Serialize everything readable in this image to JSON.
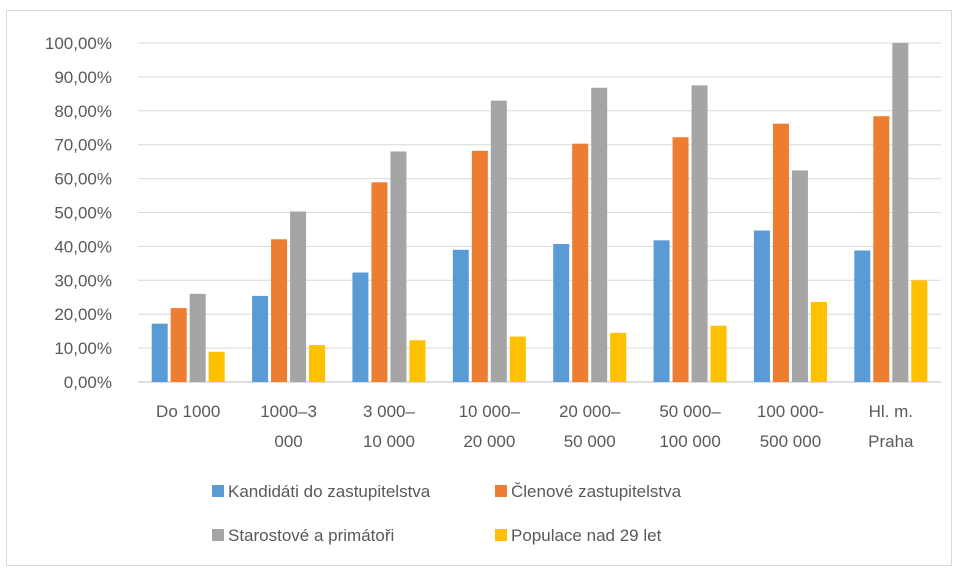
{
  "chart_data": {
    "type": "bar",
    "title": "",
    "xlabel": "",
    "ylabel": "",
    "ylim": [
      0,
      1
    ],
    "y_ticks": [
      "0,00%",
      "10,00%",
      "20,00%",
      "30,00%",
      "40,00%",
      "50,00%",
      "60,00%",
      "70,00%",
      "80,00%",
      "90,00%",
      "100,00%"
    ],
    "categories": [
      [
        "Do 1000"
      ],
      [
        "1000–3",
        "000"
      ],
      [
        "3 000–",
        "10 000"
      ],
      [
        "10 000–",
        "20 000"
      ],
      [
        "20 000–",
        "50 000"
      ],
      [
        "50 000–",
        "100 000"
      ],
      [
        "100 000-",
        "500 000"
      ],
      [
        "Hl. m.",
        "Praha"
      ]
    ],
    "series": [
      {
        "name": "Kandidáti do zastupitelstva",
        "color": "#5b9bd5",
        "values": [
          0.172,
          0.254,
          0.323,
          0.39,
          0.407,
          0.418,
          0.447,
          0.388
        ]
      },
      {
        "name": "Členové zastupitelstva",
        "color": "#ed7d31",
        "values": [
          0.218,
          0.421,
          0.589,
          0.682,
          0.703,
          0.722,
          0.762,
          0.784
        ]
      },
      {
        "name": "Starostové a primátoři",
        "color": "#a5a5a5",
        "values": [
          0.26,
          0.503,
          0.68,
          0.83,
          0.868,
          0.875,
          0.624,
          1.0
        ]
      },
      {
        "name": "Populace nad 29 let",
        "color": "#ffc000",
        "values": [
          0.089,
          0.109,
          0.123,
          0.134,
          0.145,
          0.166,
          0.236,
          0.3
        ]
      }
    ],
    "grid": true,
    "legend_position": "bottom"
  }
}
